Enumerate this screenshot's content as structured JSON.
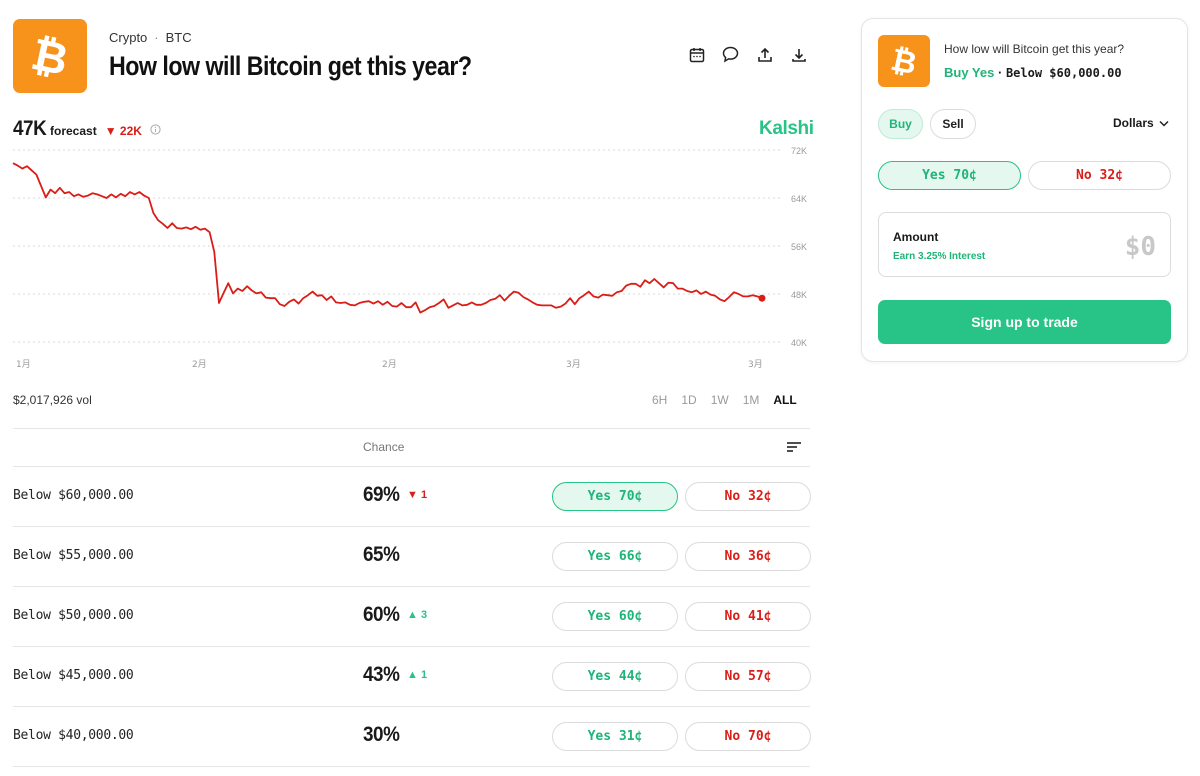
{
  "header": {
    "breadcrumb_category": "Crypto",
    "breadcrumb_separator": "·",
    "breadcrumb_asset": "BTC",
    "title": "How low will Bitcoin get this year?",
    "icons": [
      "calendar-icon",
      "comment-icon",
      "share-icon",
      "download-icon"
    ]
  },
  "forecast": {
    "value": "47K",
    "label": "forecast",
    "change": "22K",
    "change_direction": "down"
  },
  "brand": "Kalshi",
  "chart_data": {
    "type": "line",
    "title": "",
    "xlabel": "",
    "ylabel": "",
    "y_ticks": [
      "72K",
      "64K",
      "56K",
      "48K",
      "40K"
    ],
    "ylim": [
      40000,
      72000
    ],
    "x_ticks": [
      "1月",
      "2月",
      "2月",
      "3月",
      "3月"
    ],
    "grid": true,
    "line_color": "#d91e18",
    "series": [
      {
        "values": [
          69800,
          69400,
          68900,
          69300,
          68600,
          67900,
          66000,
          64100,
          65400,
          64800,
          65700,
          64800,
          65000,
          64300,
          64600,
          64200,
          64400,
          64800,
          64600,
          64300,
          64000,
          64600,
          64100,
          64700,
          64300,
          65000,
          64600,
          65000,
          64400,
          64000,
          61500,
          60300,
          59700,
          59000,
          59800,
          59000,
          58900,
          59100,
          58800,
          59200,
          58700,
          58900,
          58300,
          55000,
          46500,
          48200,
          49800,
          48100,
          48900,
          48500,
          49300,
          48600,
          48100,
          48300,
          47400,
          47300,
          47300,
          46300,
          46000,
          46700,
          47100,
          46400,
          47300,
          47800,
          48400,
          47700,
          47800,
          47000,
          47600,
          46600,
          46500,
          46600,
          46200,
          46100,
          46500,
          46700,
          46800,
          46400,
          46800,
          46200,
          46700,
          46000,
          45900,
          46500,
          45800,
          45800,
          46600,
          44900,
          45300,
          45800,
          46000,
          46500,
          47100,
          45700,
          46100,
          46500,
          46100,
          46200,
          46600,
          46200,
          46200,
          46500,
          47000,
          47200,
          47800,
          46900,
          47700,
          48400,
          48200,
          47500,
          47100,
          46600,
          46200,
          46100,
          46100,
          46100,
          45700,
          45900,
          46400,
          47300,
          46300,
          47300,
          47800,
          48400,
          47600,
          47400,
          47900,
          47800,
          47700,
          48300,
          48500,
          49400,
          49700,
          49700,
          49200,
          50300,
          49800,
          50500,
          49800,
          49100,
          49900,
          49800,
          48900,
          48900,
          48500,
          48300,
          48600,
          48000,
          48400,
          47900,
          47700,
          47100,
          46800,
          47500,
          48300,
          48000,
          47600,
          47600,
          47800,
          47600,
          47300
        ]
      }
    ],
    "last_point_marker": true
  },
  "volume": "$2,017,926 vol",
  "ranges": {
    "options": [
      "6H",
      "1D",
      "1W",
      "1M",
      "ALL"
    ],
    "active": "ALL"
  },
  "table": {
    "chance_header": "Chance",
    "rows": [
      {
        "name": "Below $60,000.00",
        "chance": "69%",
        "delta": "1",
        "delta_dir": "down",
        "yes": "Yes 70¢",
        "no": "No 32¢",
        "selected": true
      },
      {
        "name": "Below $55,000.00",
        "chance": "65%",
        "delta": "",
        "delta_dir": "",
        "yes": "Yes 66¢",
        "no": "No 36¢",
        "selected": false
      },
      {
        "name": "Below $50,000.00",
        "chance": "60%",
        "delta": "3",
        "delta_dir": "up",
        "yes": "Yes 60¢",
        "no": "No 41¢",
        "selected": false
      },
      {
        "name": "Below $45,000.00",
        "chance": "43%",
        "delta": "1",
        "delta_dir": "up",
        "yes": "Yes 44¢",
        "no": "No 57¢",
        "selected": false
      },
      {
        "name": "Below $40,000.00",
        "chance": "30%",
        "delta": "",
        "delta_dir": "",
        "yes": "Yes 31¢",
        "no": "No 70¢",
        "selected": false
      }
    ]
  },
  "panel": {
    "question": "How low will Bitcoin get this year?",
    "selection_side": "Buy Yes",
    "selection_separator": "·",
    "selection_market": "Below $60,000.00",
    "buy_label": "Buy",
    "sell_label": "Sell",
    "currency": "Dollars",
    "yes_label": "Yes 70¢",
    "no_label": "No 32¢",
    "amount_label": "Amount",
    "amount_sub": "Earn 3.25% Interest",
    "amount_value": "$0",
    "cta": "Sign up to trade"
  },
  "colors": {
    "green": "#28c386",
    "red": "#d91e18",
    "bitcoin_orange": "#f7931a"
  }
}
